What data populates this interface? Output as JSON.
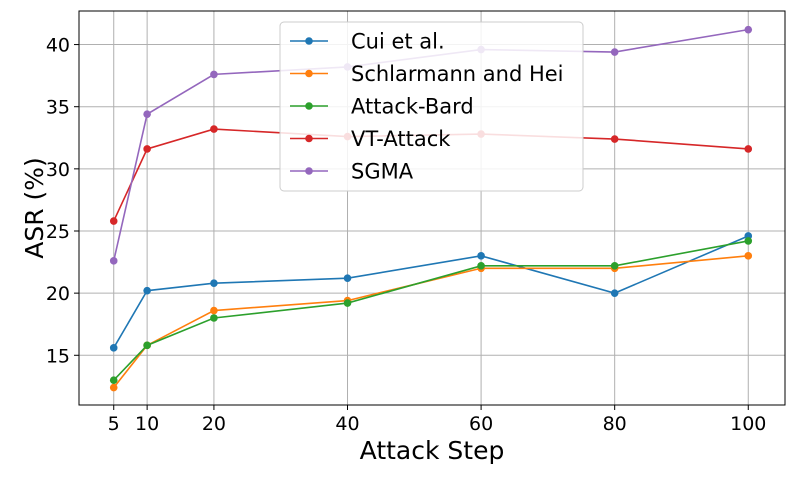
{
  "chart_data": {
    "type": "line",
    "title": "",
    "xlabel": "Attack Step",
    "ylabel": "ASR (%)",
    "x": [
      5,
      10,
      20,
      40,
      60,
      80,
      100
    ],
    "xticks": [
      "5",
      "10",
      "20",
      "40",
      "60",
      "80",
      "100"
    ],
    "yticks": [
      "15",
      "20",
      "25",
      "30",
      "35",
      "40"
    ],
    "xlim": [
      -0.2,
      105.5
    ],
    "ylim": [
      11.0,
      42.7
    ],
    "grid": true,
    "legend_position": "top-center",
    "series": [
      {
        "name": "Cui et al.",
        "color": "#1f77b4",
        "values": [
          15.6,
          20.2,
          20.8,
          21.2,
          23.0,
          20.0,
          24.6
        ]
      },
      {
        "name": "Schlarmann and Hei",
        "color": "#ff7f0e",
        "values": [
          12.4,
          15.8,
          18.6,
          19.4,
          22.0,
          22.0,
          23.0
        ]
      },
      {
        "name": "Attack-Bard",
        "color": "#2ca02c",
        "values": [
          13.0,
          15.8,
          18.0,
          19.2,
          22.2,
          22.2,
          24.2
        ]
      },
      {
        "name": "VT-Attack",
        "color": "#d62728",
        "values": [
          25.8,
          31.6,
          33.2,
          32.6,
          32.8,
          32.4,
          31.6
        ]
      },
      {
        "name": "SGMA",
        "color": "#9467bd",
        "values": [
          22.6,
          34.4,
          37.6,
          38.2,
          39.6,
          39.4,
          41.2
        ]
      }
    ]
  }
}
